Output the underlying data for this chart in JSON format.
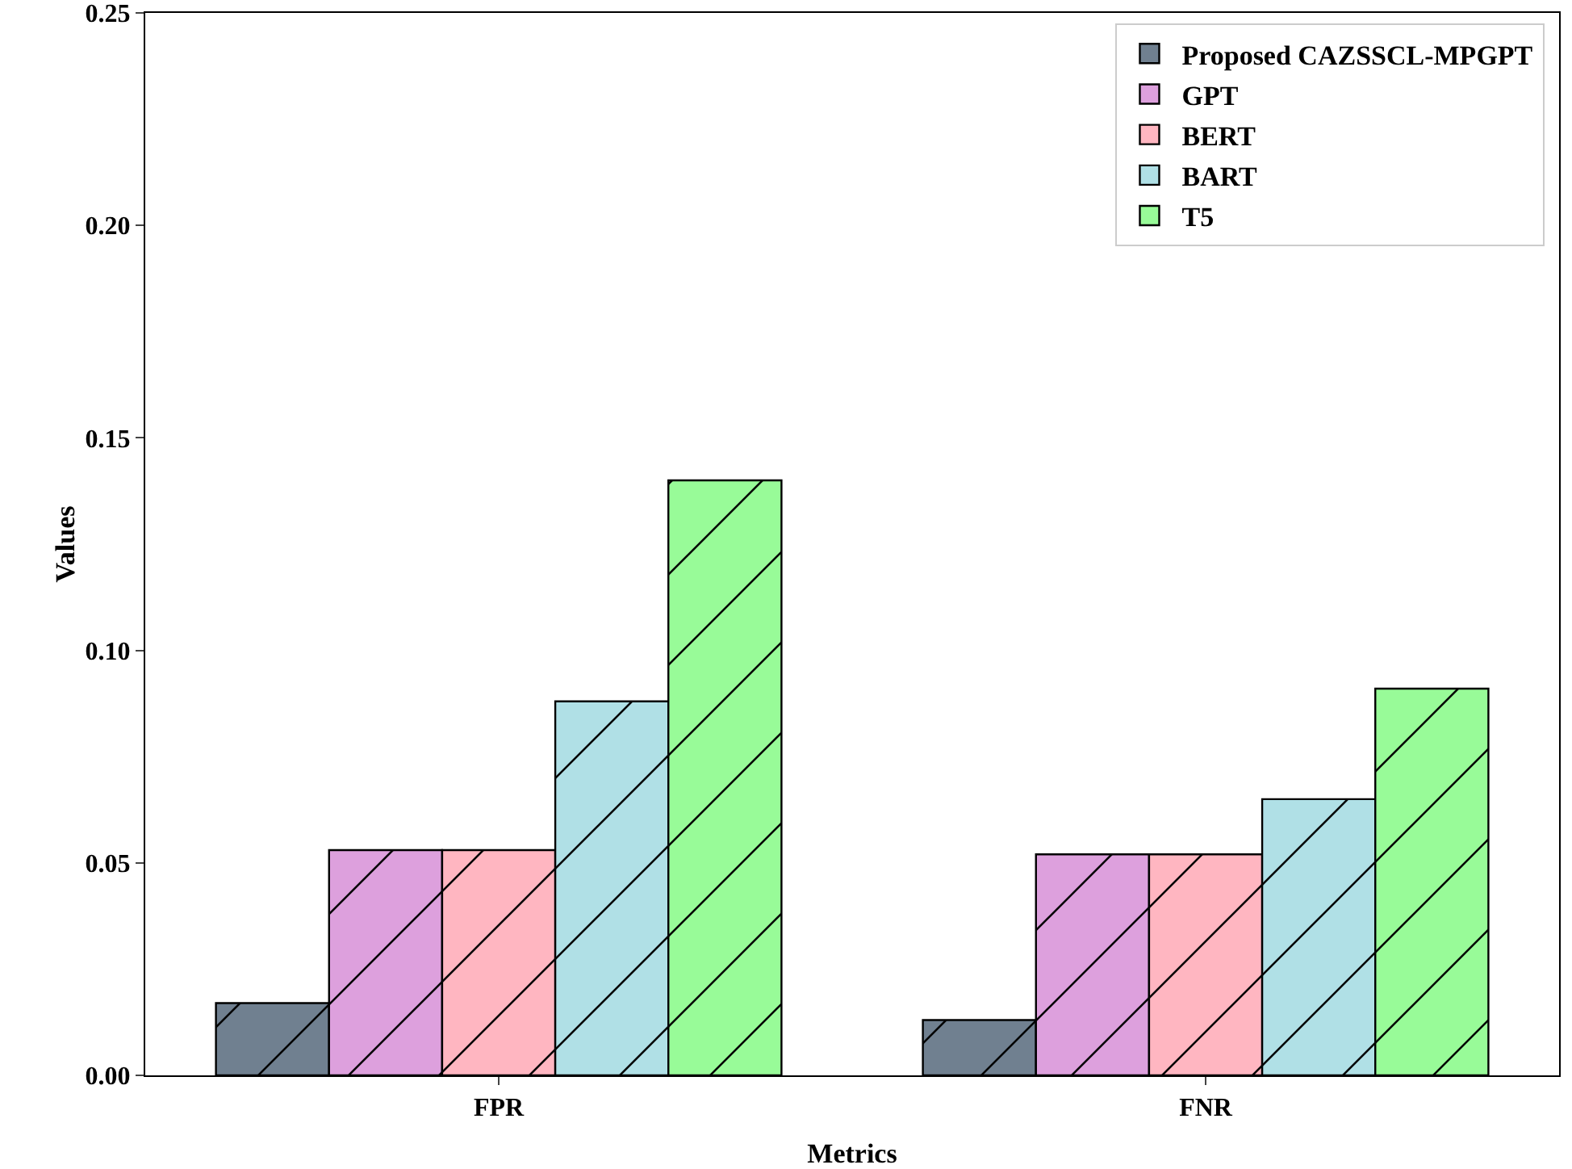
{
  "chart_data": {
    "type": "bar",
    "xlabel": "Metrics",
    "ylabel": "Values",
    "categories": [
      "FPR",
      "FNR"
    ],
    "series": [
      {
        "name": "Proposed CAZSSCL-MPGPT",
        "color": "#708090",
        "values": [
          0.017,
          0.013
        ]
      },
      {
        "name": "GPT",
        "color": "#dda0dd",
        "values": [
          0.053,
          0.052
        ]
      },
      {
        "name": "BERT",
        "color": "#ffb6c1",
        "values": [
          0.053,
          0.052
        ]
      },
      {
        "name": "BART",
        "color": "#b0e0e6",
        "values": [
          0.088,
          0.065
        ]
      },
      {
        "name": "T5",
        "color": "#98fb98",
        "values": [
          0.14,
          0.091
        ]
      }
    ],
    "ylim": [
      0,
      0.25
    ],
    "yticks": [
      {
        "value": 0,
        "label": "0.00"
      },
      {
        "value": 0.05,
        "label": "0.05"
      },
      {
        "value": 0.1,
        "label": "0.10"
      },
      {
        "value": 0.15,
        "label": "0.15"
      },
      {
        "value": 0.2,
        "label": "0.20"
      },
      {
        "value": 0.25,
        "label": "0.25"
      }
    ],
    "grid": false,
    "legend": "top right"
  }
}
